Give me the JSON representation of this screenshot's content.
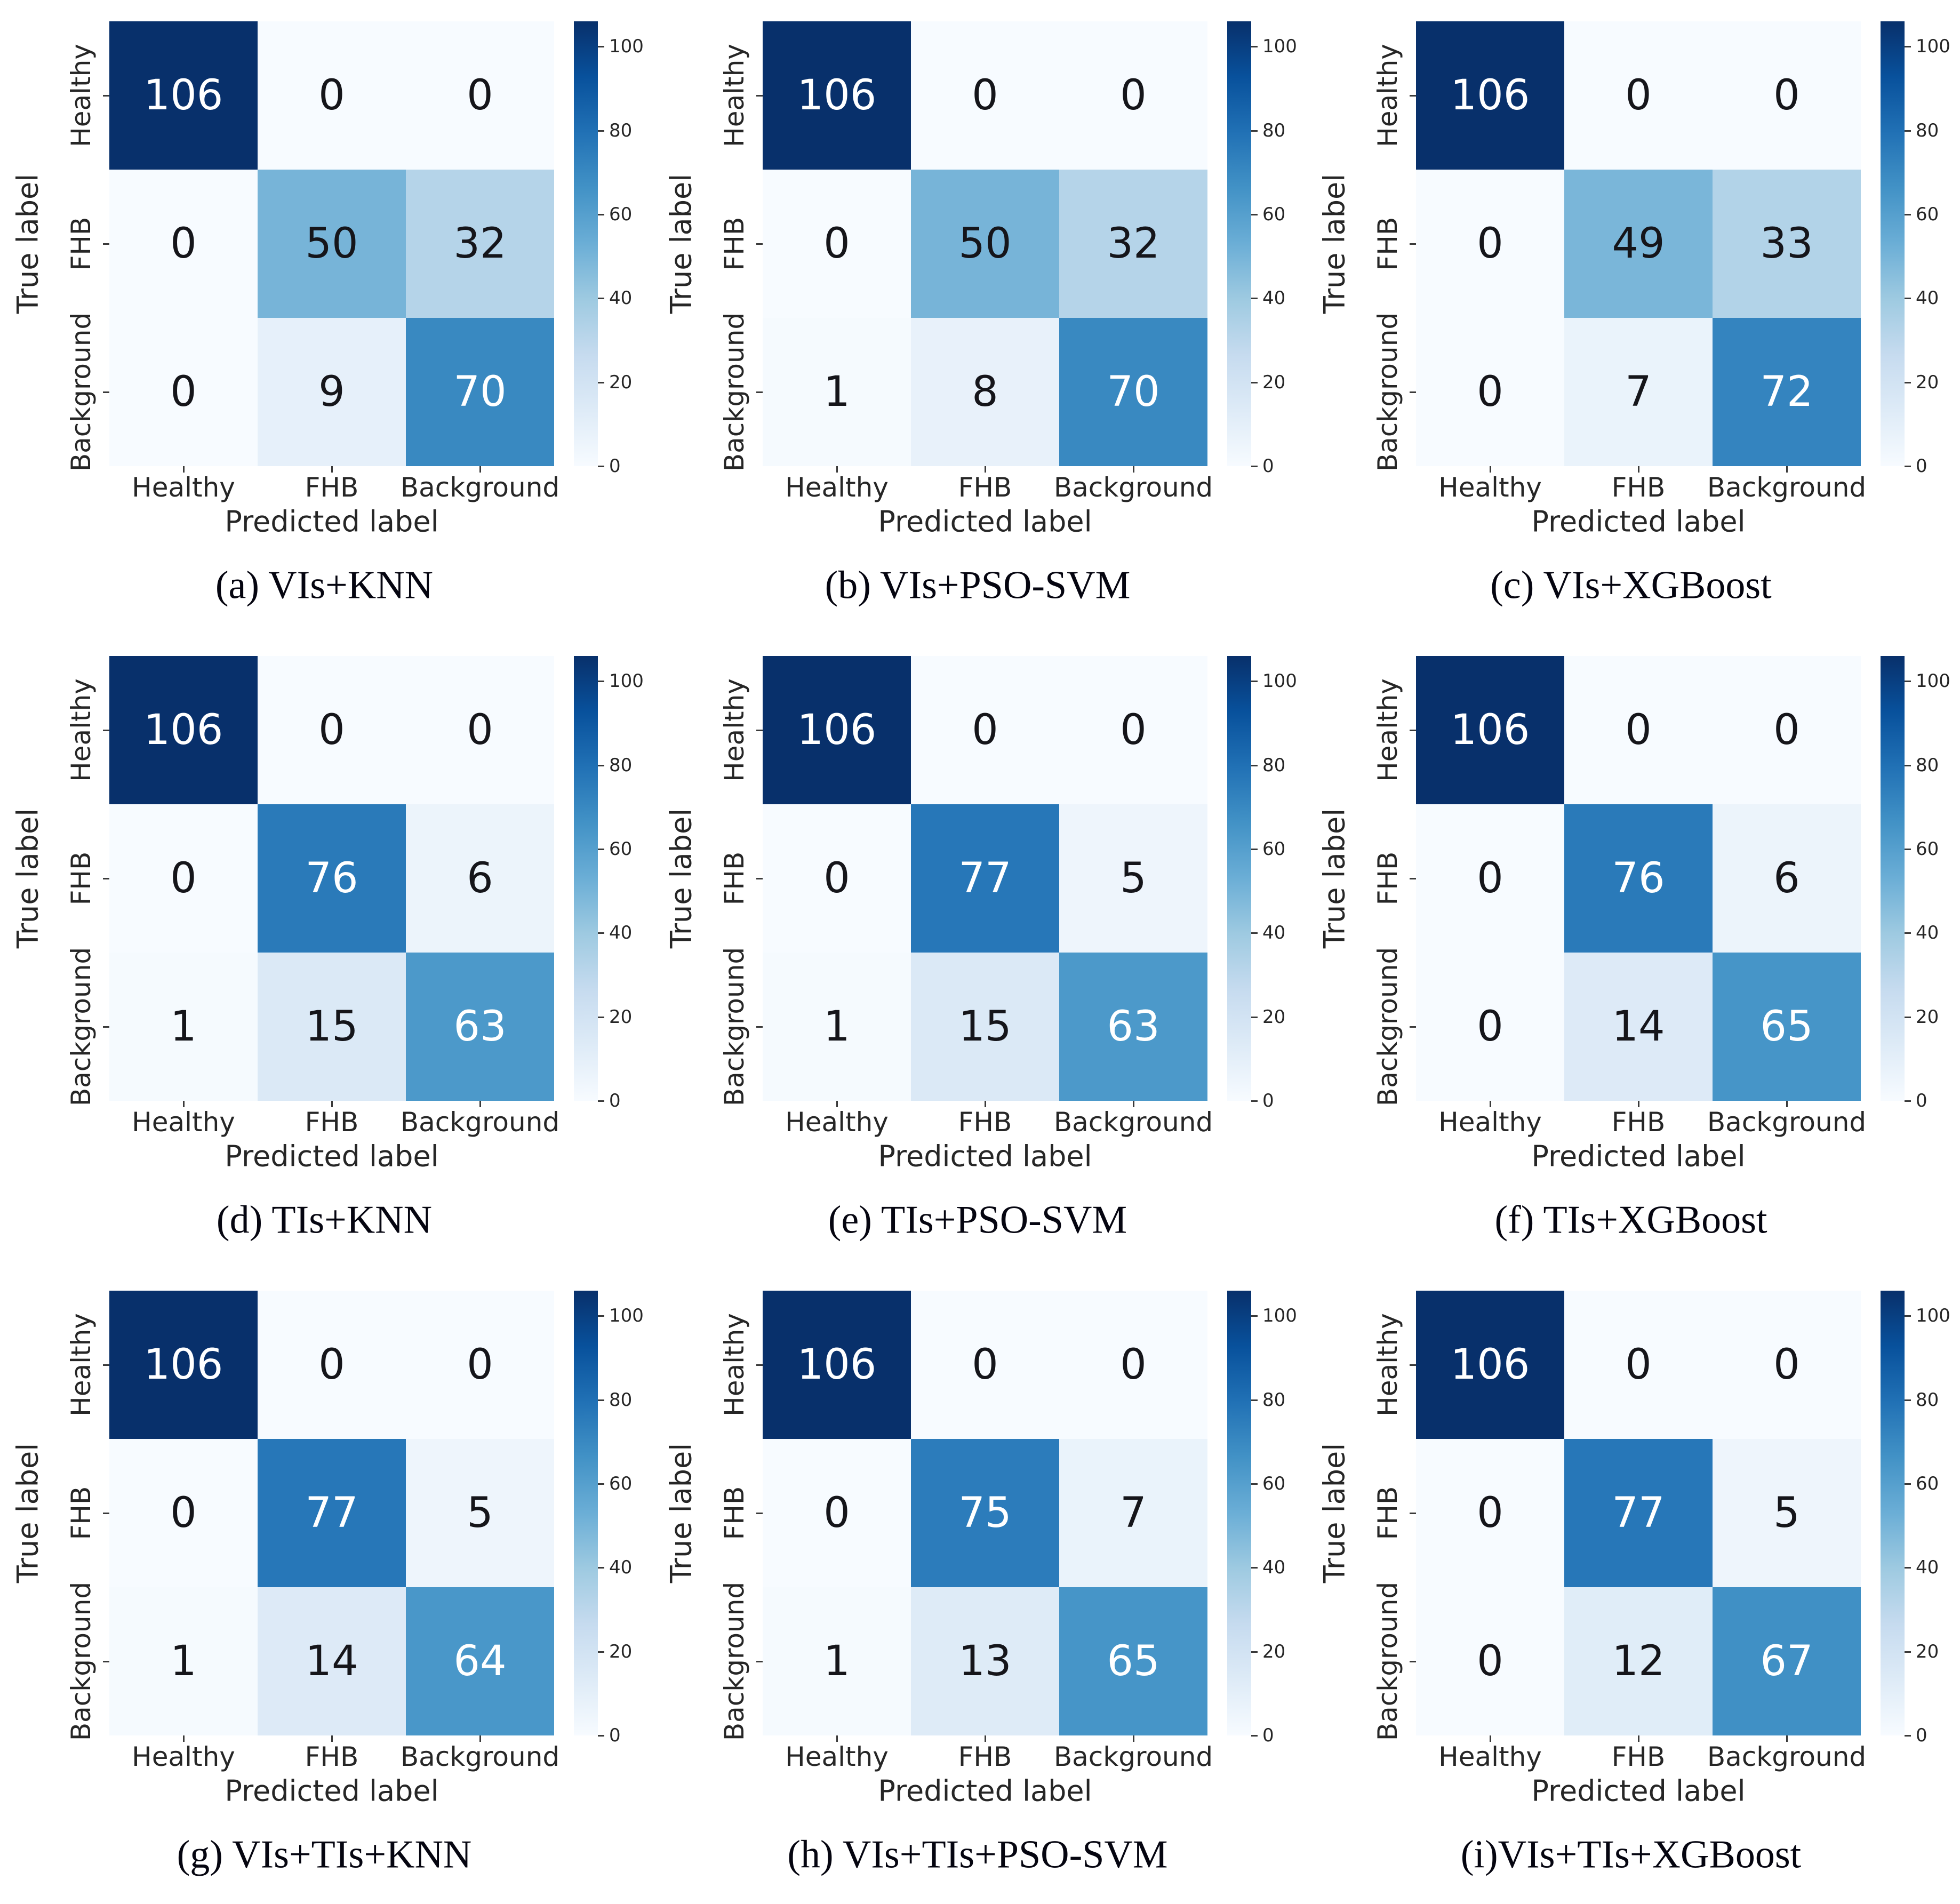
{
  "figure": {
    "type": "confusion-matrix-grid",
    "grid_rows": 3,
    "grid_cols": 3,
    "xlabel": "Predicted label",
    "ylabel": "True label",
    "classes": [
      "Healthy",
      "FHB",
      "Background"
    ],
    "colormap": "Blues",
    "vmin": 0,
    "vmax": 106,
    "colorbar_ticks": [
      0,
      20,
      40,
      60,
      80,
      100
    ],
    "colors": {
      "cmap_low": "#f7fbff",
      "cmap_high": "#08306b",
      "annotation_dark": "#15151a",
      "annotation_light": "#ffffff",
      "tick_text": "#262626",
      "caption_text": "#050510"
    }
  },
  "chart_data": [
    {
      "type": "heatmap",
      "caption": "(a) VIs+KNN",
      "xlabel": "Predicted label",
      "ylabel": "True label",
      "categories": [
        "Healthy",
        "FHB",
        "Background"
      ],
      "matrix": [
        [
          106,
          0,
          0
        ],
        [
          0,
          50,
          32
        ],
        [
          0,
          9,
          70
        ]
      ],
      "vmin": 0,
      "vmax": 106,
      "colorbar_ticks": [
        0,
        20,
        40,
        60,
        80,
        100
      ]
    },
    {
      "type": "heatmap",
      "caption": "(b) VIs+PSO-SVM",
      "xlabel": "Predicted label",
      "ylabel": "True label",
      "categories": [
        "Healthy",
        "FHB",
        "Background"
      ],
      "matrix": [
        [
          106,
          0,
          0
        ],
        [
          0,
          50,
          32
        ],
        [
          1,
          8,
          70
        ]
      ],
      "vmin": 0,
      "vmax": 106,
      "colorbar_ticks": [
        0,
        20,
        40,
        60,
        80,
        100
      ]
    },
    {
      "type": "heatmap",
      "caption": "(c) VIs+XGBoost",
      "xlabel": "Predicted label",
      "ylabel": "True label",
      "categories": [
        "Healthy",
        "FHB",
        "Background"
      ],
      "matrix": [
        [
          106,
          0,
          0
        ],
        [
          0,
          49,
          33
        ],
        [
          0,
          7,
          72
        ]
      ],
      "vmin": 0,
      "vmax": 106,
      "colorbar_ticks": [
        0,
        20,
        40,
        60,
        80,
        100
      ]
    },
    {
      "type": "heatmap",
      "caption": "(d) TIs+KNN",
      "xlabel": "Predicted label",
      "ylabel": "True label",
      "categories": [
        "Healthy",
        "FHB",
        "Background"
      ],
      "matrix": [
        [
          106,
          0,
          0
        ],
        [
          0,
          76,
          6
        ],
        [
          1,
          15,
          63
        ]
      ],
      "vmin": 0,
      "vmax": 106,
      "colorbar_ticks": [
        0,
        20,
        40,
        60,
        80,
        100
      ]
    },
    {
      "type": "heatmap",
      "caption": "(e) TIs+PSO-SVM",
      "xlabel": "Predicted label",
      "ylabel": "True label",
      "categories": [
        "Healthy",
        "FHB",
        "Background"
      ],
      "matrix": [
        [
          106,
          0,
          0
        ],
        [
          0,
          77,
          5
        ],
        [
          1,
          15,
          63
        ]
      ],
      "vmin": 0,
      "vmax": 106,
      "colorbar_ticks": [
        0,
        20,
        40,
        60,
        80,
        100
      ]
    },
    {
      "type": "heatmap",
      "caption": "(f) TIs+XGBoost",
      "xlabel": "Predicted label",
      "ylabel": "True label",
      "categories": [
        "Healthy",
        "FHB",
        "Background"
      ],
      "matrix": [
        [
          106,
          0,
          0
        ],
        [
          0,
          76,
          6
        ],
        [
          0,
          14,
          65
        ]
      ],
      "vmin": 0,
      "vmax": 106,
      "colorbar_ticks": [
        0,
        20,
        40,
        60,
        80,
        100
      ]
    },
    {
      "type": "heatmap",
      "caption": "(g) VIs+TIs+KNN",
      "xlabel": "Predicted label",
      "ylabel": "True label",
      "categories": [
        "Healthy",
        "FHB",
        "Background"
      ],
      "matrix": [
        [
          106,
          0,
          0
        ],
        [
          0,
          77,
          5
        ],
        [
          1,
          14,
          64
        ]
      ],
      "vmin": 0,
      "vmax": 106,
      "colorbar_ticks": [
        0,
        20,
        40,
        60,
        80,
        100
      ]
    },
    {
      "type": "heatmap",
      "caption": "(h) VIs+TIs+PSO-SVM",
      "xlabel": "Predicted label",
      "ylabel": "True label",
      "categories": [
        "Healthy",
        "FHB",
        "Background"
      ],
      "matrix": [
        [
          106,
          0,
          0
        ],
        [
          0,
          75,
          7
        ],
        [
          1,
          13,
          65
        ]
      ],
      "vmin": 0,
      "vmax": 106,
      "colorbar_ticks": [
        0,
        20,
        40,
        60,
        80,
        100
      ]
    },
    {
      "type": "heatmap",
      "caption": "(i)VIs+TIs+XGBoost",
      "xlabel": "Predicted label",
      "ylabel": "True label",
      "categories": [
        "Healthy",
        "FHB",
        "Background"
      ],
      "matrix": [
        [
          106,
          0,
          0
        ],
        [
          0,
          77,
          5
        ],
        [
          0,
          12,
          67
        ]
      ],
      "vmin": 0,
      "vmax": 106,
      "colorbar_ticks": [
        0,
        20,
        40,
        60,
        80,
        100
      ]
    }
  ]
}
